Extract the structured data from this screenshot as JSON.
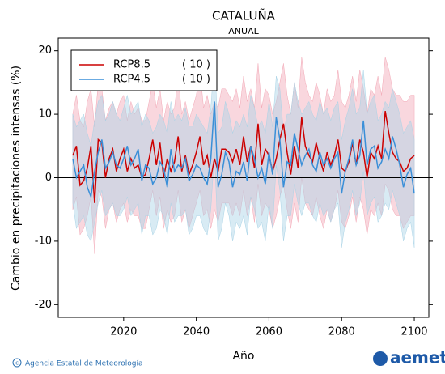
{
  "chart_data": {
    "type": "line",
    "title": "CATALUÑA",
    "subtitle": "ANUAL",
    "y_label": "Cambio en precipitaciones intensas (%)",
    "x_label": "Año",
    "xlim": [
      2002,
      2104
    ],
    "xticks": [
      2020,
      2040,
      2060,
      2080,
      2100
    ],
    "ylim": [
      -22,
      22
    ],
    "yticks": [
      -20,
      -10,
      0,
      10,
      20
    ],
    "x": [
      2006,
      2007,
      2008,
      2009,
      2010,
      2011,
      2012,
      2013,
      2014,
      2015,
      2016,
      2017,
      2018,
      2019,
      2020,
      2021,
      2022,
      2023,
      2024,
      2025,
      2026,
      2027,
      2028,
      2029,
      2030,
      2031,
      2032,
      2033,
      2034,
      2035,
      2036,
      2037,
      2038,
      2039,
      2040,
      2041,
      2042,
      2043,
      2044,
      2045,
      2046,
      2047,
      2048,
      2049,
      2050,
      2051,
      2052,
      2053,
      2054,
      2055,
      2056,
      2057,
      2058,
      2059,
      2060,
      2061,
      2062,
      2063,
      2064,
      2065,
      2066,
      2067,
      2068,
      2069,
      2070,
      2071,
      2072,
      2073,
      2074,
      2075,
      2076,
      2077,
      2078,
      2079,
      2080,
      2081,
      2082,
      2083,
      2084,
      2085,
      2086,
      2087,
      2088,
      2089,
      2090,
      2091,
      2092,
      2093,
      2094,
      2095,
      2096,
      2097,
      2098,
      2099,
      2100
    ],
    "series": [
      {
        "name": "RCP8.5",
        "count_label": "( 10 )",
        "color": "#cc0000",
        "band_color": "#f2a7b5",
        "values": [
          3.5,
          5,
          -1.2,
          -0.5,
          1.5,
          5,
          -4,
          6,
          5.5,
          0,
          3,
          4.5,
          1,
          3,
          4.5,
          1,
          3,
          1.5,
          2,
          0,
          0.5,
          3,
          6,
          2,
          5.5,
          0,
          3,
          1,
          2.5,
          6.5,
          1,
          3.5,
          0.5,
          2,
          4,
          6.5,
          2,
          3.5,
          0,
          3,
          1,
          4.5,
          4.5,
          4,
          2.5,
          4.5,
          2,
          6.5,
          2.5,
          5,
          1.5,
          8.5,
          2,
          4.5,
          3.5,
          1,
          3,
          6,
          8.5,
          4,
          0.5,
          5,
          1.5,
          9.5,
          5,
          3.5,
          2.5,
          5.5,
          3,
          1,
          4,
          2,
          3.5,
          6,
          1.5,
          1,
          2.5,
          5.5,
          2,
          6,
          4,
          0,
          4,
          3,
          5,
          3,
          10.5,
          7,
          4,
          3,
          2.5,
          1,
          1.5,
          3,
          3.5
        ],
        "upper": [
          10,
          13,
          9,
          8,
          12,
          14,
          8,
          15,
          14,
          9,
          11,
          12,
          10,
          12,
          13,
          9,
          12,
          10,
          11,
          9,
          9,
          12,
          15,
          11,
          14,
          9,
          12,
          10,
          11,
          16,
          10,
          12,
          9,
          11,
          13,
          17,
          11,
          13,
          10,
          12,
          11,
          14,
          14,
          13,
          12,
          14,
          11,
          16,
          12,
          14,
          11,
          18,
          11,
          14,
          13,
          10,
          12,
          15,
          18,
          13,
          10,
          15,
          11,
          19,
          15,
          13,
          12,
          15,
          13,
          10,
          14,
          12,
          13,
          17,
          12,
          11,
          13,
          16,
          12,
          17,
          14,
          10,
          14,
          13,
          16,
          13,
          19,
          17,
          14,
          13,
          13,
          12,
          12,
          13,
          13
        ],
        "lower": [
          -5,
          -3,
          -9,
          -8,
          -6,
          -3,
          -12,
          -2,
          -3,
          -8,
          -5,
          -4,
          -7,
          -5,
          -4,
          -7,
          -5,
          -6,
          -6,
          -8,
          -8,
          -5,
          -2,
          -6,
          -3,
          -8,
          -5,
          -7,
          -6,
          -2,
          -7,
          -5,
          -8,
          -6,
          -4,
          -2,
          -6,
          -5,
          -8,
          -5,
          -7,
          -4,
          -4,
          -4,
          -6,
          -4,
          -6,
          -2,
          -6,
          -3,
          -7,
          -1,
          -6,
          -4,
          -5,
          -8,
          -6,
          -3,
          -1,
          -5,
          -8,
          -4,
          -7,
          0,
          -4,
          -5,
          -6,
          -3,
          -6,
          -8,
          -5,
          -7,
          -5,
          -2,
          -7,
          -8,
          -6,
          -3,
          -7,
          -3,
          -5,
          -9,
          -5,
          -6,
          -4,
          -6,
          -1,
          -2,
          -5,
          -6,
          -6,
          -8,
          -7,
          -6,
          -6
        ]
      },
      {
        "name": "RCP4.5",
        "count_label": "( 10 )",
        "color": "#3a8fd8",
        "band_color": "#a9d3e6",
        "values": [
          3,
          0,
          1,
          2,
          -1.5,
          -3,
          1,
          4,
          6,
          1.5,
          2.5,
          4,
          2,
          1.5,
          3,
          5,
          2,
          3,
          4.5,
          -0.5,
          2,
          1.5,
          -1,
          0,
          2.5,
          1.5,
          -1.5,
          4.5,
          1,
          2,
          1.5,
          3,
          -0.5,
          0.5,
          2,
          1.5,
          0,
          -1,
          3,
          12,
          -1.5,
          0.5,
          4,
          2.5,
          -1.5,
          1,
          0.5,
          2.5,
          -0.5,
          5,
          3,
          0,
          1.5,
          -1,
          4,
          0.5,
          9.5,
          6,
          -1.5,
          2.5,
          2,
          7,
          4.5,
          2,
          3.5,
          4.5,
          2,
          1,
          4,
          2,
          3,
          1.5,
          3,
          4,
          -2.5,
          1,
          3,
          6,
          2,
          3.5,
          9,
          2,
          4.5,
          5,
          1.5,
          2.5,
          4.5,
          3,
          6.5,
          4.5,
          2,
          -1.5,
          0.5,
          1.5,
          -2.5
        ],
        "upper": [
          10,
          8,
          9,
          10,
          7,
          5,
          9,
          12,
          13,
          9,
          10,
          12,
          10,
          9,
          11,
          13,
          10,
          11,
          12,
          8,
          10,
          9,
          7,
          8,
          10,
          9,
          7,
          12,
          9,
          10,
          9,
          11,
          8,
          8,
          10,
          9,
          8,
          7,
          11,
          19,
          7,
          8,
          12,
          10,
          7,
          9,
          8,
          10,
          8,
          13,
          11,
          8,
          9,
          7,
          12,
          8,
          16,
          14,
          7,
          10,
          10,
          15,
          12,
          10,
          11,
          12,
          10,
          9,
          12,
          10,
          11,
          9,
          11,
          12,
          6,
          9,
          11,
          14,
          10,
          11,
          17,
          10,
          12,
          13,
          9,
          10,
          12,
          11,
          14,
          12,
          10,
          7,
          8,
          9,
          6
        ],
        "lower": [
          -4,
          -8,
          -7,
          -6,
          -9,
          -10,
          -7,
          -4,
          -2,
          -6,
          -5,
          -4,
          -6,
          -6,
          -5,
          -3,
          -6,
          -5,
          -4,
          -9,
          -6,
          -6,
          -9,
          -8,
          -5,
          -6,
          -9,
          -4,
          -7,
          -6,
          -6,
          -5,
          -9,
          -8,
          -6,
          -6,
          -8,
          -9,
          -5,
          4,
          -10,
          -8,
          -4,
          -6,
          -10,
          -7,
          -8,
          -6,
          -9,
          -3,
          -5,
          -8,
          -7,
          -10,
          -4,
          -8,
          2,
          -2,
          -10,
          -6,
          -6,
          -1,
          -4,
          -6,
          -4,
          -4,
          -6,
          -7,
          -4,
          -6,
          -5,
          -7,
          -5,
          -4,
          -11,
          -7,
          -5,
          -2,
          -6,
          -4,
          1,
          -6,
          -4,
          -3,
          -7,
          -6,
          -4,
          -5,
          -2,
          -4,
          -6,
          -10,
          -8,
          -7,
          -11
        ]
      }
    ],
    "credit": "Agencia Estatal de Meteorología",
    "logo": "aemet"
  }
}
